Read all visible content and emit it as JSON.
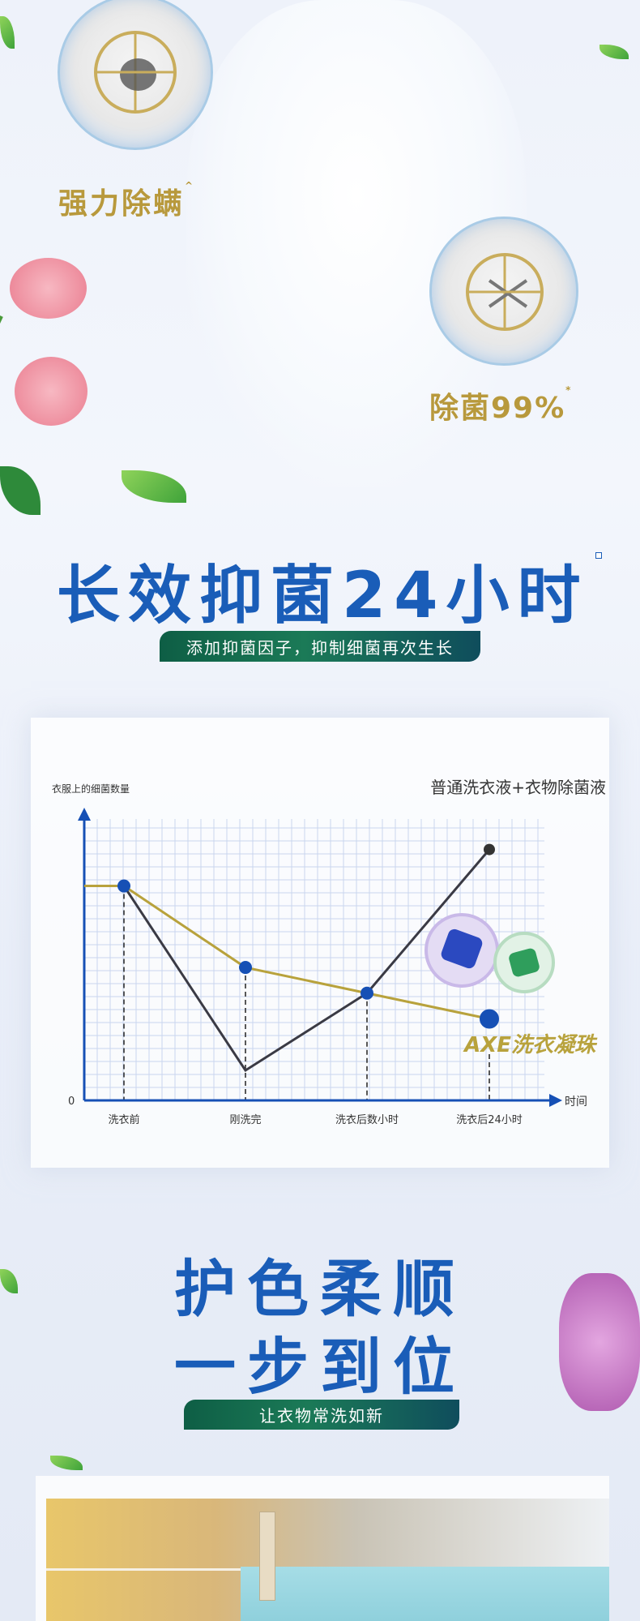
{
  "hero": {
    "feature_1": {
      "label": "强力除螨",
      "mark": "^",
      "icon": "dust-mite-reticle-icon"
    },
    "feature_2": {
      "label": "除菌99%",
      "mark": "*",
      "icon": "bacteria-reticle-icon"
    }
  },
  "section_1": {
    "headline": "长效抑菌24小时",
    "subtitle": "添加抑菌因子，抑制细菌再次生长"
  },
  "chart_data": {
    "type": "line",
    "ylabel": "衣服上的细菌数量",
    "xlabel": "时间",
    "y_origin_label": "0",
    "categories": [
      "洗衣前",
      "刚洗完",
      "洗衣后数小时",
      "洗衣后24小时"
    ],
    "series": [
      {
        "name": "普通洗衣液+衣物除菌液",
        "values": [
          100,
          14,
          50,
          117
        ],
        "color": "#3a3a44"
      },
      {
        "name": "AXE洗衣凝珠",
        "values": [
          100,
          62,
          50,
          38
        ],
        "color": "#b8a23c"
      }
    ],
    "ylim": [
      0,
      135
    ],
    "grid": true,
    "marker_color": "#1650b5"
  },
  "section_2": {
    "headline_line1": "护色柔顺",
    "headline_line2": "一步到位",
    "subtitle": "让衣物常洗如新"
  },
  "colors": {
    "headline_blue": "#1a5db8",
    "gold": "#b8993c",
    "pill_green": "#0e5e45"
  }
}
